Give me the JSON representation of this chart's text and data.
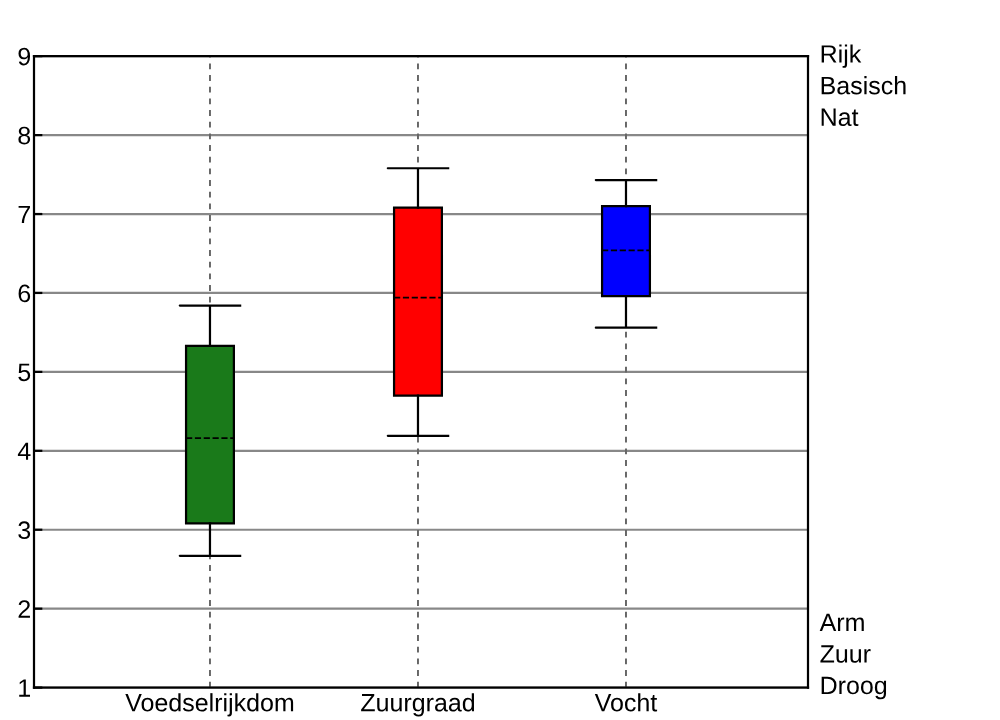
{
  "chart_data": {
    "type": "box",
    "categories": [
      "Voedselrijkdom",
      "Zuurgraad",
      "Vocht"
    ],
    "boxes": [
      {
        "low": 2.67,
        "q1": 3.08,
        "median": 4.16,
        "q3": 5.33,
        "high": 5.84
      },
      {
        "low": 4.19,
        "q1": 4.7,
        "median": 5.94,
        "q3": 7.08,
        "high": 7.58
      },
      {
        "low": 5.56,
        "q1": 5.96,
        "median": 6.54,
        "q3": 7.1,
        "high": 7.43
      }
    ],
    "colors": [
      "#1a7a1a",
      "#ff0000",
      "#0000ff"
    ],
    "ylim": [
      1,
      9
    ],
    "yticks": [
      1,
      2,
      3,
      4,
      5,
      6,
      7,
      8,
      9
    ],
    "annotations": [
      "Rijk",
      "Basisch",
      "Nat",
      "Arm",
      "Zuur",
      "Droog"
    ],
    "grid": true
  }
}
